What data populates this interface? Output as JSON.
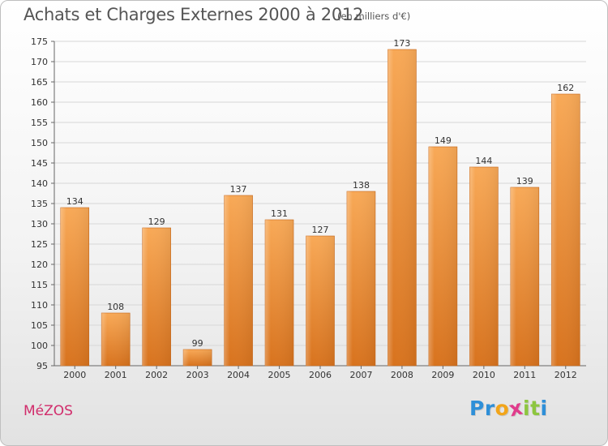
{
  "chart_data": {
    "type": "bar",
    "title": "Achats et Charges Externes 2000 à 2012",
    "subtitle": "(en milliers d'€)",
    "categories": [
      "2000",
      "2001",
      "2002",
      "2003",
      "2004",
      "2005",
      "2006",
      "2007",
      "2008",
      "2009",
      "2010",
      "2011",
      "2012"
    ],
    "values": [
      134,
      108,
      129,
      99,
      137,
      131,
      127,
      138,
      173,
      149,
      144,
      139,
      162
    ],
    "xlabel": "",
    "ylabel": "",
    "ylim": [
      95,
      175
    ],
    "yticks": [
      95,
      100,
      105,
      110,
      115,
      120,
      125,
      130,
      135,
      140,
      145,
      150,
      155,
      160,
      165,
      170,
      175
    ],
    "grid": true,
    "legend": "none",
    "colors": {
      "bar_light": "#f8a957",
      "bar_dark": "#d8731e",
      "grid": "#d7d7d7",
      "axis": "#666666"
    }
  },
  "footer": {
    "place": "MéZOS"
  },
  "logo": {
    "letters": [
      {
        "char": "P",
        "color": "#2e8fd8"
      },
      {
        "char": "r",
        "color": "#2e8fd8"
      },
      {
        "char": "o",
        "color": "#f2a51a"
      },
      {
        "char": "x",
        "color": "#e03c8c"
      },
      {
        "char": "i",
        "color": "#8dc63f"
      },
      {
        "char": "t",
        "color": "#8dc63f"
      },
      {
        "char": "i",
        "color": "#2e8fd8"
      }
    ],
    "colors": {
      "place": "#d12c6b"
    }
  }
}
